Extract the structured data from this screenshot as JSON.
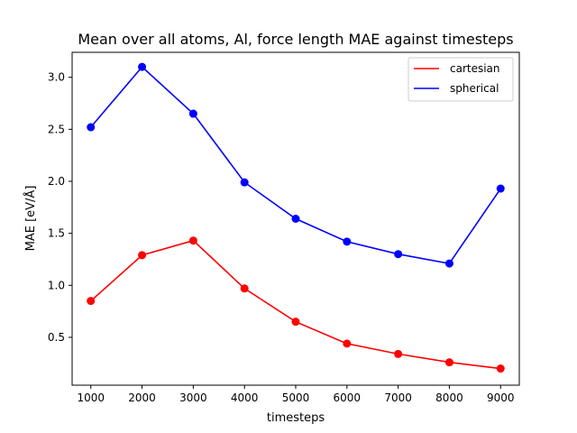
{
  "chart_data": {
    "type": "line",
    "title": "Mean over all atoms, Al, force length MAE against timesteps",
    "xlabel": "timesteps",
    "ylabel": "MAE [eV/Å]",
    "x": [
      1000,
      2000,
      3000,
      4000,
      5000,
      6000,
      7000,
      8000,
      9000
    ],
    "xlim": [
      635,
      9365
    ],
    "ylim": [
      0.04,
      3.24
    ],
    "xticks": [
      1000,
      2000,
      3000,
      4000,
      5000,
      6000,
      7000,
      8000,
      9000
    ],
    "yticks": [
      0.5,
      1.0,
      1.5,
      2.0,
      2.5,
      3.0
    ],
    "grid": false,
    "legend_position": "top-right",
    "markers": true,
    "series": [
      {
        "name": "cartesian",
        "color": "#ff0000",
        "values": [
          0.85,
          1.29,
          1.43,
          0.97,
          0.65,
          0.44,
          0.34,
          0.26,
          0.2
        ]
      },
      {
        "name": "spherical",
        "color": "#0000ff",
        "values": [
          2.52,
          3.1,
          2.65,
          1.99,
          1.64,
          1.42,
          1.3,
          1.21,
          1.93
        ]
      }
    ]
  }
}
